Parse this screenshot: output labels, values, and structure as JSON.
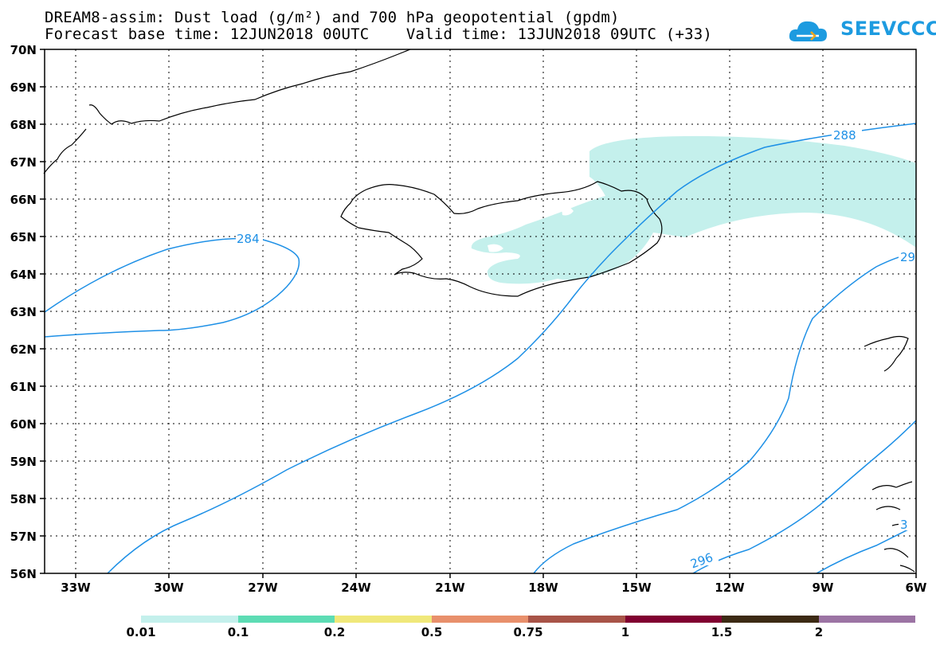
{
  "title": {
    "line1": "DREAM8-assim: Dust load (g/m²) and 700 hPa geopotential (gpdm)",
    "line2": "Forecast base time: 12JUN2018 00UTC    Valid time: 13JUN2018 09UTC (+33)"
  },
  "logo": {
    "text": "SEEVCCC",
    "icon": "cloud-icon",
    "color": "#1d9be0"
  },
  "map": {
    "lat_labels": [
      "70N",
      "69N",
      "68N",
      "67N",
      "66N",
      "65N",
      "64N",
      "63N",
      "62N",
      "61N",
      "60N",
      "59N",
      "58N",
      "57N",
      "56N"
    ],
    "lon_labels": [
      "33W",
      "30W",
      "27W",
      "24W",
      "21W",
      "18W",
      "15W",
      "12W",
      "9W",
      "6W"
    ],
    "contour_color": "#1e90e6",
    "contour_labels": [
      "284",
      "288",
      "29",
      "296",
      "3"
    ],
    "dust_color": "#c4f0ec"
  },
  "colorbar": {
    "colors": [
      "#c4f0ec",
      "#5ddcb4",
      "#f0e87a",
      "#e8906c",
      "#a85448",
      "#800030",
      "#3c2a14",
      "#9c74a4"
    ],
    "labels": [
      "0.01",
      "0.1",
      "0.2",
      "0.5",
      "0.75",
      "1",
      "1.5",
      "2"
    ]
  }
}
